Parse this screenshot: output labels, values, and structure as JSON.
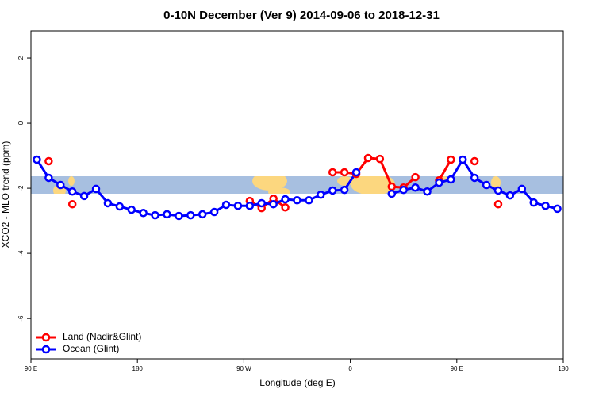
{
  "chart_data": {
    "type": "line",
    "title": "0-10N December (Ver 9)   2014-09-06 to 2018-12-31",
    "x_label": "Longitude (deg E)",
    "y_label": "XCO2 - MLO trend (ppm)",
    "xlim": [
      90,
      540
    ],
    "ylim": [
      -7.24,
      2.83
    ],
    "xticks": [
      {
        "value": 90,
        "label": "90 E"
      },
      180,
      {
        "value": 270,
        "label": "90 W"
      },
      {
        "value": 360,
        "label": "0"
      },
      {
        "value": 450,
        "label": "90 E"
      },
      {
        "value": 540,
        "label": "180"
      }
    ],
    "yticks": [
      2,
      0,
      -2,
      -4,
      -6
    ],
    "legend": "bottomleft",
    "x": [
      95,
      105,
      115,
      125,
      135,
      145,
      155,
      165,
      175,
      185,
      195,
      205,
      215,
      225,
      235,
      245,
      255,
      265,
      275,
      285,
      295,
      305,
      315,
      325,
      335,
      345,
      355,
      365,
      375,
      385,
      395,
      405,
      415,
      425,
      435,
      445,
      455,
      465,
      475,
      485,
      495,
      505,
      515,
      525,
      535
    ],
    "series": [
      {
        "name": "Land (Nadir&Glint)",
        "color": "#ff0000",
        "values": [
          null,
          -1.17,
          null,
          -2.49,
          null,
          null,
          null,
          null,
          null,
          null,
          null,
          null,
          null,
          null,
          null,
          null,
          null,
          null,
          -2.39,
          -2.61,
          -2.32,
          -2.59,
          null,
          null,
          null,
          -1.51,
          -1.51,
          -1.56,
          -1.07,
          -1.1,
          -1.95,
          -1.98,
          -1.66,
          null,
          -1.76,
          -1.12,
          null,
          -1.17,
          null,
          -2.49,
          null,
          null,
          null,
          null,
          null
        ]
      },
      {
        "name": "Ocean (Glint)",
        "color": "#0000ff",
        "values": [
          -1.12,
          -1.68,
          -1.9,
          -2.1,
          -2.24,
          -2.02,
          -2.46,
          -2.56,
          -2.66,
          -2.76,
          -2.83,
          -2.8,
          -2.85,
          -2.83,
          -2.8,
          -2.73,
          -2.51,
          -2.54,
          -2.54,
          -2.46,
          -2.49,
          -2.34,
          -2.37,
          -2.37,
          -2.2,
          -2.07,
          -2.05,
          -1.51,
          null,
          null,
          -2.17,
          -2.05,
          -1.98,
          -2.1,
          -1.83,
          -1.73,
          -1.12,
          -1.68,
          -1.9,
          -2.07,
          -2.22,
          -2.02,
          -2.44,
          -2.54,
          -2.63
        ]
      }
    ]
  }
}
